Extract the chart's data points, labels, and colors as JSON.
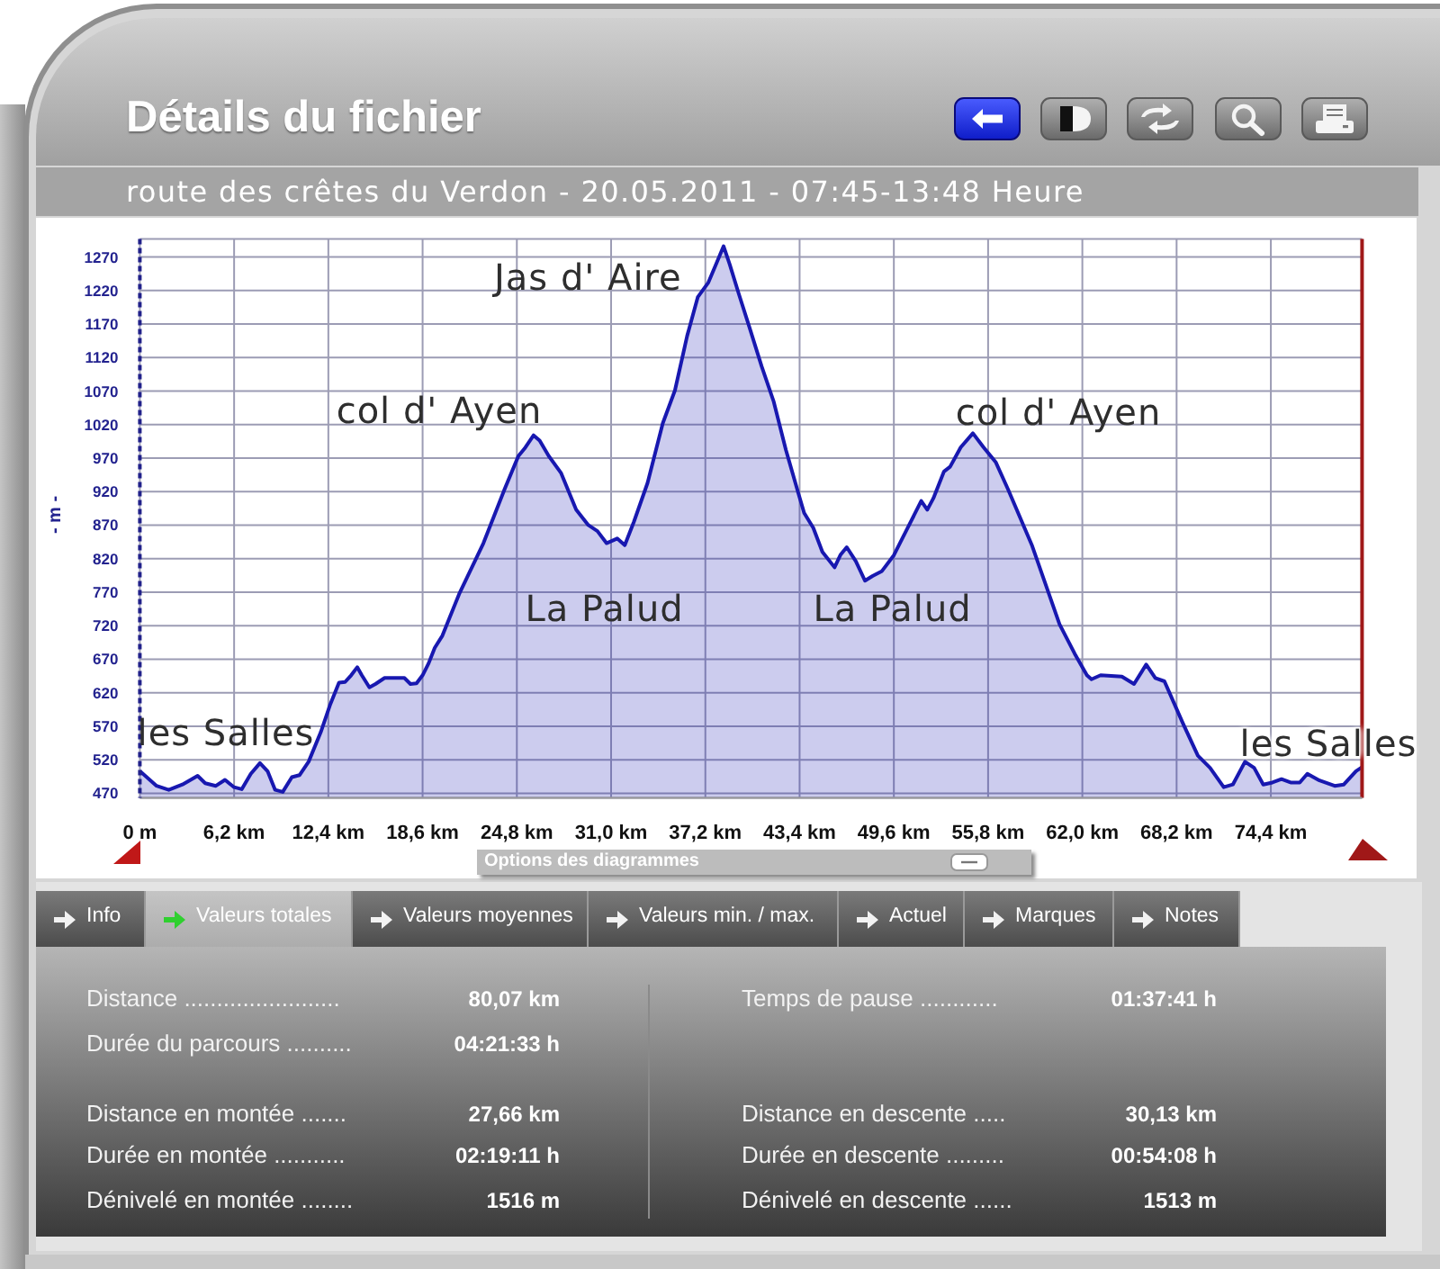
{
  "chart_data": {
    "type": "area",
    "title": "Détails du fichier",
    "subtitle": "route des crêtes du Verdon - 20.05.2011 - 07:45-13:48 Heure",
    "ylabel": "- m -",
    "x": [
      0,
      1.1,
      1.9,
      2.8,
      3.8,
      4.3,
      5.0,
      5.6,
      6.2,
      6.7,
      7.3,
      7.9,
      8.4,
      8.9,
      9.4,
      10.0,
      10.5,
      11.1,
      11.9,
      12.5,
      13.1,
      13.5,
      13.9,
      14.3,
      14.6,
      15.1,
      15.5,
      16.1,
      17.4,
      17.8,
      18.2,
      18.6,
      19.0,
      19.4,
      19.9,
      21.0,
      22.6,
      24.0,
      24.9,
      25.3,
      25.9,
      26.3,
      26.9,
      27.7,
      28.7,
      29.5,
      30.1,
      30.7,
      31.4,
      31.9,
      32.5,
      33.4,
      34.4,
      35.2,
      36.0,
      36.7,
      37.4,
      37.9,
      38.4,
      38.8,
      39.4,
      40.1,
      40.9,
      41.7,
      42.5,
      43.3,
      43.7,
      44.3,
      44.9,
      45.7,
      46.1,
      46.5,
      47.1,
      47.7,
      48.2,
      48.8,
      49.6,
      50.4,
      51.4,
      51.8,
      52.2,
      52.9,
      53.3,
      54.0,
      54.8,
      55.5,
      56.3,
      57.1,
      58.7,
      60.5,
      61.5,
      62.3,
      62.6,
      63.2,
      64.6,
      65.4,
      66.2,
      66.8,
      67.4,
      68.6,
      69.6,
      70.4,
      71.3,
      71.9,
      72.7,
      73.3,
      73.9,
      74.5,
      75.1,
      75.7,
      76.3,
      76.8,
      77.6,
      78.6,
      79.2,
      80.0,
      80.4
    ],
    "series": [
      {
        "color": "#1818b0",
        "values": [
          503,
          481,
          475,
          483,
          496,
          485,
          481,
          490,
          479,
          476,
          499,
          515,
          503,
          475,
          472,
          494,
          497,
          517,
          561,
          601,
          635,
          636,
          646,
          658,
          646,
          628,
          633,
          642,
          642,
          633,
          634,
          646,
          664,
          687,
          705,
          767,
          843,
          924,
          973,
          984,
          1004,
          996,
          973,
          948,
          893,
          870,
          861,
          843,
          850,
          840,
          875,
          933,
          1022,
          1071,
          1152,
          1210,
          1232,
          1259,
          1286,
          1259,
          1215,
          1165,
          1107,
          1054,
          982,
          919,
          888,
          866,
          830,
          807,
          826,
          837,
          816,
          787,
          794,
          801,
          825,
          861,
          906,
          893,
          910,
          950,
          957,
          986,
          1007,
          986,
          964,
          924,
          839,
          722,
          678,
          646,
          640,
          646,
          644,
          633,
          662,
          642,
          637,
          575,
          526,
          508,
          479,
          483,
          517,
          508,
          483,
          486,
          491,
          486,
          486,
          499,
          489,
          481,
          483,
          503,
          509
        ]
      }
    ],
    "xlim": [
      0,
      80.4
    ],
    "xticks": [
      {
        "value": 0,
        "label": "0 m"
      },
      {
        "value": 6.2,
        "label": "6,2 km"
      },
      {
        "value": 12.4,
        "label": "12,4 km"
      },
      {
        "value": 18.6,
        "label": "18,6 km"
      },
      {
        "value": 24.8,
        "label": "24,8 km"
      },
      {
        "value": 31.0,
        "label": "31,0 km"
      },
      {
        "value": 37.2,
        "label": "37,2 km"
      },
      {
        "value": 43.4,
        "label": "43,4 km"
      },
      {
        "value": 49.6,
        "label": "49,6 km"
      },
      {
        "value": 55.8,
        "label": "55,8 km"
      },
      {
        "value": 62.0,
        "label": "62,0 km"
      },
      {
        "value": 68.2,
        "label": "68,2 km"
      },
      {
        "value": 74.4,
        "label": "74,4 km"
      }
    ],
    "ylim": [
      463,
      1297
    ],
    "yticks": [
      470,
      520,
      570,
      620,
      670,
      720,
      770,
      820,
      870,
      920,
      970,
      1020,
      1070,
      1120,
      1170,
      1220,
      1270
    ],
    "grid": true,
    "ref_lines": [
      {
        "axis": "x",
        "value": 80.4,
        "color": "#a01818"
      }
    ],
    "annotations": [
      "Jas d' Aire",
      "col d' Ayen",
      "col d' Ayen",
      "La Palud",
      "La Palud",
      "les Salles",
      "les Salles",
      "Options des diagrammes",
      "Info",
      "Valeurs totales",
      "Valeurs moyennes",
      "Valeurs min. / max.",
      "Actuel",
      "Marques",
      "Notes",
      "Distance ........................",
      "80,07 km",
      "Durée du parcours ..........",
      "04:21:33 h",
      "Distance en montée .......",
      "27,66 km",
      "Durée en montée ...........",
      "02:19:11 h",
      "Dénivelé en montée ........",
      "1516 m",
      "Temps de pause ............",
      "01:37:41 h",
      "Distance en descente .....",
      "30,13 km",
      "Durée en descente .........",
      "00:54:08 h",
      "Dénivelé en descente ......",
      "1513 m"
    ]
  }
}
